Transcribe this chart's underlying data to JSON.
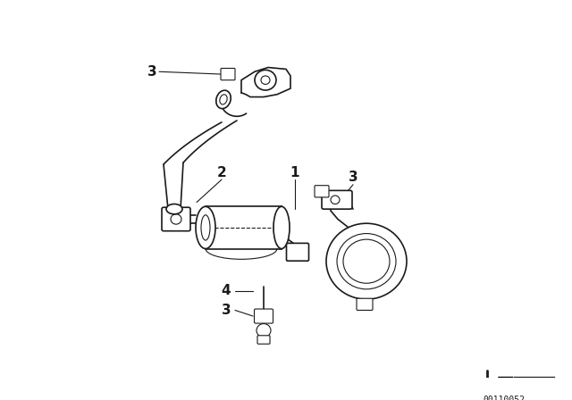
{
  "bg_color": "#ffffff",
  "line_color": "#1a1a1a",
  "diagram_number": "00110052",
  "fig_width": 6.4,
  "fig_height": 4.48,
  "dpi": 100,
  "label_fontsize": 11,
  "num_fontsize": 7
}
